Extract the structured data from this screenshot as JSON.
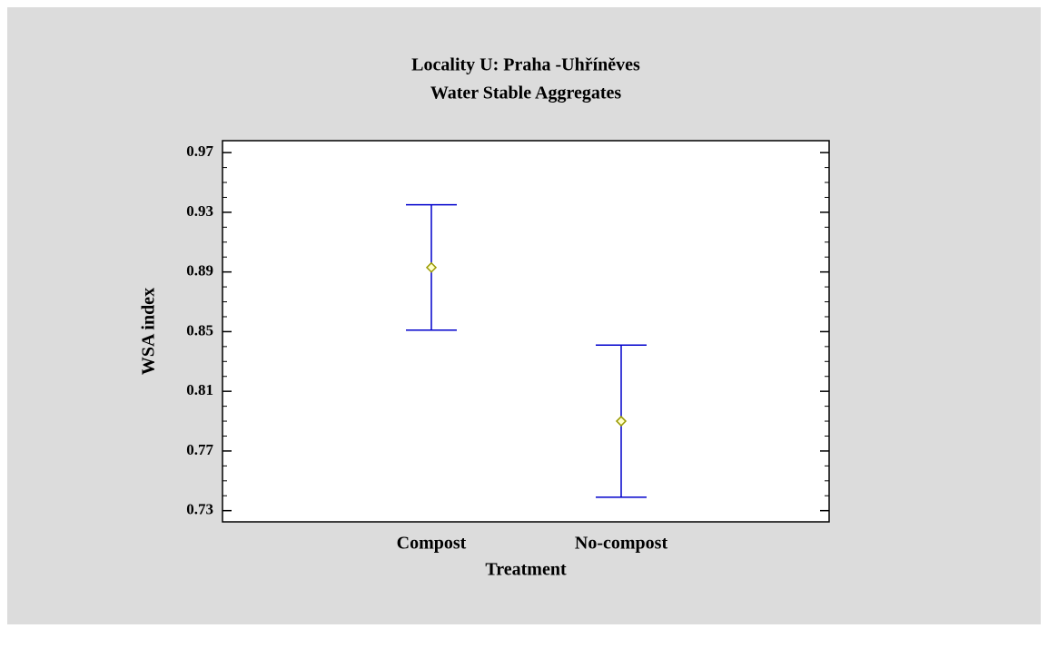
{
  "chart_data": {
    "type": "errorbar",
    "title": "Locality U: Praha -Uhříněves",
    "subtitle": "Water Stable Aggregates",
    "x_label": "Treatment",
    "y_label": "WSA index",
    "categories": [
      "Compost",
      "No-compost"
    ],
    "values": [
      0.893,
      0.79
    ],
    "errors": [
      0.042,
      0.051
    ],
    "bar_color": "#0000cc",
    "marker_color": "#999900",
    "ylim": [
      0.7225,
      0.978
    ],
    "yticks": [
      0.73,
      0.77,
      0.81,
      0.85,
      0.89,
      0.93,
      0.97
    ],
    "yminorticks": [
      0.74,
      0.75,
      0.76,
      0.78,
      0.79,
      0.8,
      0.82,
      0.83,
      0.84,
      0.86,
      0.87,
      0.88,
      0.9,
      0.91,
      0.92,
      0.94,
      0.95,
      0.96
    ]
  }
}
